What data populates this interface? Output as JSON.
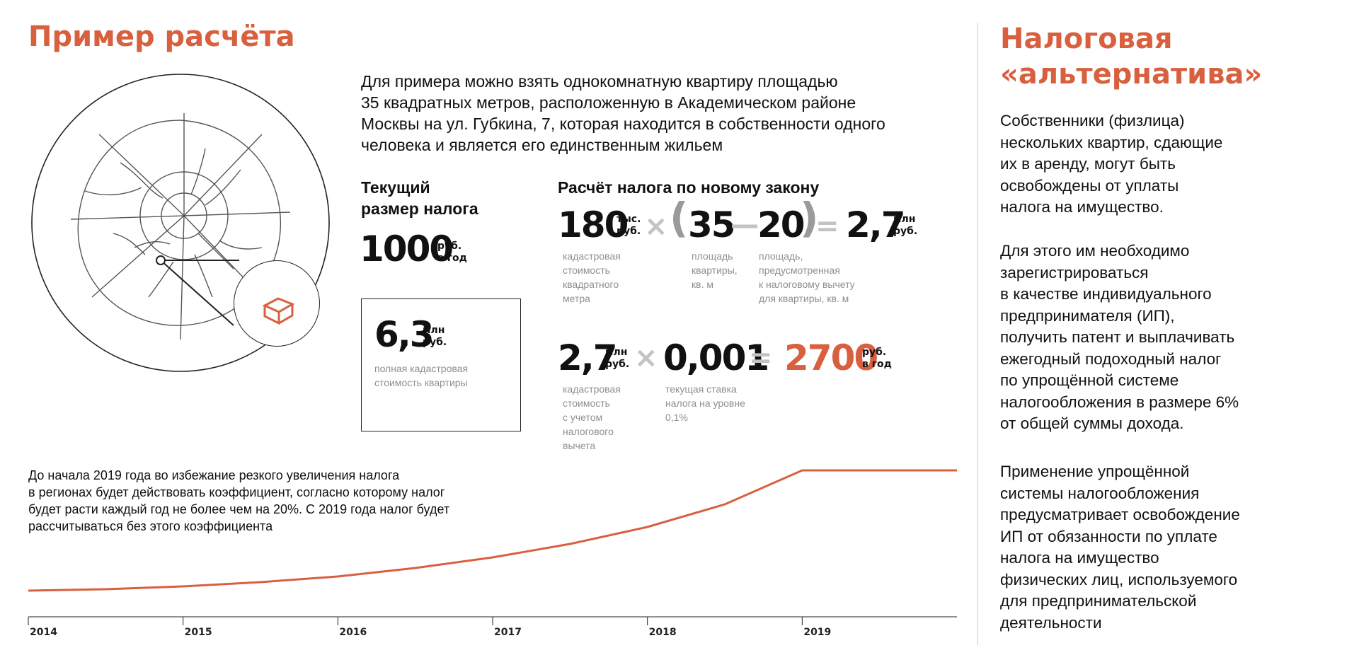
{
  "left": {
    "title": "Пример расчёта",
    "intro": [
      "Для примера можно взять однокомнатную квартиру площадью",
      "35 квадратных метров, расположенную в Академическом районе",
      "Москвы на ул. Губкина, 7, которая находится в собственности одного",
      "человека и является его единственным жильем"
    ],
    "current_tax": {
      "heading": [
        "Текущий",
        "размер налога"
      ],
      "value": "1000",
      "unit": [
        "руб.",
        "в год"
      ],
      "value_color": "#5577a8"
    },
    "full_value": {
      "value": "6,3",
      "unit": [
        "млн",
        "руб."
      ],
      "caption": [
        "полная кадастровая",
        "стоимость квартиры"
      ]
    },
    "formula_title": "Расчёт налога по новому закону",
    "formula1": {
      "price": "180",
      "price_unit": [
        "тыс.",
        "руб."
      ],
      "times": "×",
      "open": "(",
      "area": "35",
      "minus": "—",
      "deduction": "20",
      "close": ")",
      "equals": "=",
      "result": "2,7",
      "result_unit": [
        "млн",
        "руб."
      ],
      "caption_price": [
        "кадастровая",
        "стоимость",
        "квадратного",
        "метра"
      ],
      "caption_area": [
        "площадь",
        "квартиры,",
        "кв. м"
      ],
      "caption_deduction": [
        "площадь,",
        "предусмотренная",
        "к налоговому вычету",
        "для квартиры, кв. м"
      ]
    },
    "formula2": {
      "value": "2,7",
      "value_unit": [
        "млн",
        "руб."
      ],
      "times": "×",
      "rate": "0,001",
      "equals": "=",
      "result": "2700",
      "result_unit": [
        "руб.",
        "в год"
      ],
      "result_color": "#d8603f",
      "caption_value": [
        "кадастровая",
        "стоимость",
        "с учетом",
        "налогового",
        "вычета"
      ],
      "caption_rate": [
        "текущая ставка",
        "налога на уровне",
        "0,1%"
      ]
    },
    "note": [
      "До начала 2019 года во избежание резкого увеличения налога",
      "в регионах будет действовать коэффициент, согласно которому налог",
      "будет расти каждый год не более чем на 20%. С 2019 года налог будет",
      "рассчитываться без этого коэффициента"
    ]
  },
  "chart_data": {
    "type": "line",
    "title": "",
    "xlabel": "",
    "ylabel": "",
    "categories": [
      "2014",
      "2015",
      "2016",
      "2017",
      "2018",
      "2019"
    ],
    "x": [
      2014.0,
      2014.5,
      2015.0,
      2015.5,
      2016.0,
      2016.5,
      2017.0,
      2017.5,
      2018.0,
      2018.5,
      2019.0,
      2020.0
    ],
    "y": [
      1000,
      1020,
      1060,
      1120,
      1200,
      1320,
      1470,
      1660,
      1900,
      2220,
      2700,
      2700
    ],
    "xlim": [
      2014,
      2020
    ],
    "ylim": [
      850,
      2750
    ],
    "grid": false,
    "line_color": "#d8603f"
  },
  "right": {
    "title": [
      "Налоговая",
      "«альтернатива»"
    ],
    "p1": [
      "Собственники (физлица)",
      "нескольких квартир, сдающие",
      "их в аренду, могут быть",
      "освобождены от уплаты",
      "налога на имущество."
    ],
    "p2": [
      "Для этого им необходимо",
      "зарегистрироваться",
      "в качестве индивидуального",
      "предпринимателя (ИП),",
      "получить патент и выплачивать",
      "ежегодный подоходный налог",
      "по упрощённой системе",
      "налогообложения в размере 6%",
      "от общей суммы дохода."
    ],
    "p3": [
      "Применение упрощённой",
      "системы налогообложения",
      "предусматривает освобождение",
      "ИП от обязанности по уплате",
      "налога на имущество",
      "физических лиц, используемого",
      "для предпринимательской",
      "деятельности"
    ]
  },
  "icons": [
    "moscow-map-icon",
    "apartment-icon"
  ]
}
